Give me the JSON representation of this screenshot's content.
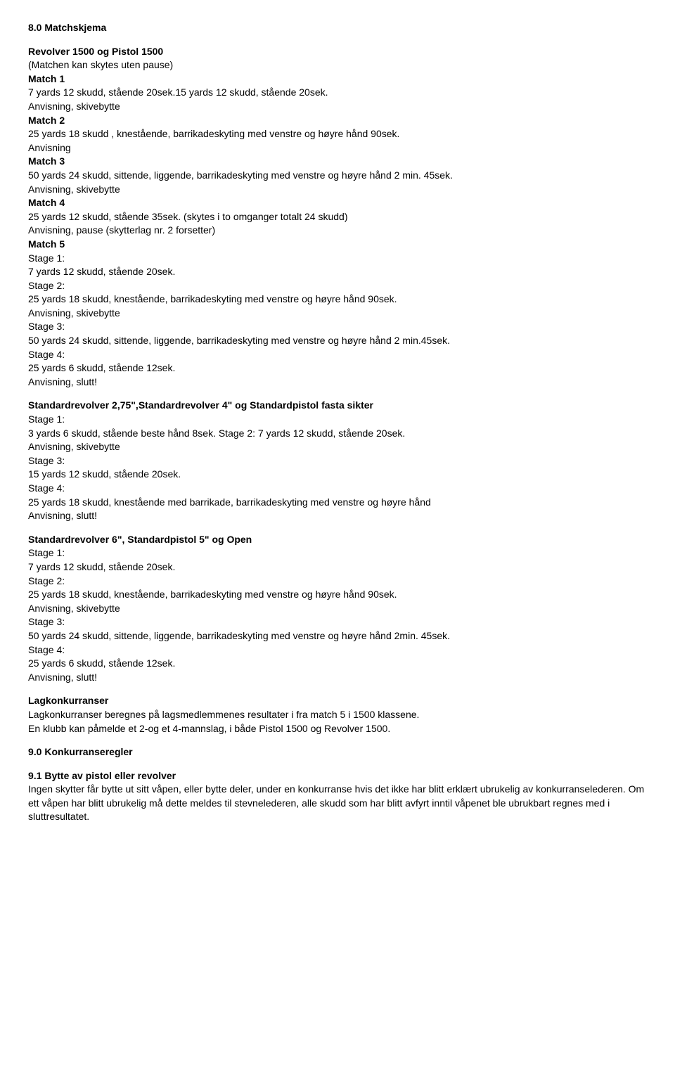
{
  "sec80": {
    "title": "8.0 Matchskjema",
    "revolver_pistol_title": "Revolver 1500 og Pistol 1500",
    "matchen_note": "(Matchen kan skytes uten pause)",
    "match1_label": "Match 1",
    "match1_line1": "7 yards 12 skudd, stående 20sek.15 yards 12 skudd, stående 20sek.",
    "match1_line2": "Anvisning, skivebytte",
    "match2_label": "Match 2",
    "match2_line1": "25 yards 18 skudd , knestående, barrikadeskyting med venstre og høyre hånd 90sek.",
    "match2_line2": "Anvisning",
    "match3_label": "Match 3",
    "match3_line1": "50 yards 24 skudd, sittende, liggende, barrikadeskyting med venstre og høyre hånd 2 min. 45sek.",
    "match3_line2": "Anvisning, skivebytte",
    "match4_label": "Match 4",
    "match4_line1": "25 yards 12 skudd, stående 35sek. (skytes i to omganger totalt 24 skudd)",
    "match4_line2": "Anvisning, pause (skytterlag nr. 2 forsetter)",
    "match5_label": "Match 5",
    "match5_stage1_label": "Stage 1:",
    "match5_stage1_text": "7 yards 12 skudd, stående 20sek.",
    "match5_stage2_label": "Stage 2:",
    "match5_stage2_text": "25 yards 18 skudd, knestående, barrikadeskyting med venstre og høyre hånd 90sek.",
    "match5_stage2_text2": "Anvisning, skivebytte",
    "match5_stage3_label": "Stage 3:",
    "match5_stage3_text": "50 yards 24 skudd, sittende, liggende, barrikadeskyting med venstre og høyre hånd 2 min.45sek.",
    "match5_stage4_label": "Stage 4:",
    "match5_stage4_text": "25 yards 6 skudd, stående 12sek.",
    "match5_stage4_text2": "Anvisning, slutt!",
    "std_275_title": "Standardrevolver 2,75\",Standardrevolver 4\" og Standardpistol fasta sikter",
    "std_275_stage1_label": "Stage 1:",
    "std_275_stage1_text": "3 yards 6 skudd, stående beste hånd 8sek. Stage 2: 7 yards 12 skudd, stående 20sek.",
    "std_275_stage1_text2": "Anvisning, skivebytte",
    "std_275_stage3_label": "Stage 3:",
    "std_275_stage3_text": "15 yards 12 skudd, stående 20sek.",
    "std_275_stage4_label": "Stage 4:",
    "std_275_stage4_text": "25 yards 18 skudd, knestående med barrikade, barrikadeskyting med venstre og høyre hånd",
    "std_275_stage4_text2": "Anvisning, slutt!",
    "std6_title": "Standardrevolver 6\", Standardpistol 5\" og Open",
    "std6_stage1_label": "Stage 1:",
    "std6_stage1_text": "7 yards 12 skudd, stående 20sek.",
    "std6_stage2_label": "Stage 2:",
    "std6_stage2_text": "25 yards 18 skudd, knestående, barrikadeskyting med venstre og høyre hånd 90sek.",
    "std6_stage2_text2": "Anvisning, skivebytte",
    "std6_stage3_label": "Stage 3:",
    "std6_stage3_text": "50 yards 24 skudd, sittende, liggende, barrikadeskyting med venstre og høyre hånd 2min. 45sek.",
    "std6_stage4_label": "Stage 4:",
    "std6_stage4_text": " 25 yards 6 skudd, stående 12sek.",
    "std6_stage4_text2": "Anvisning, slutt!",
    "lag_title": "Lagkonkurranser",
    "lag_text1": "Lagkonkurranser beregnes på lagsmedlemmenes resultater i fra match 5 i 1500 klassene.",
    "lag_text2": "En klubb kan påmelde et 2-og et 4-mannslag, i både Pistol 1500 og Revolver 1500."
  },
  "sec90": {
    "title": "9.0 Konkurranseregler"
  },
  "sec91": {
    "title": "9.1 Bytte av pistol eller revolver",
    "text": "Ingen skytter får bytte ut sitt våpen, eller bytte deler, under en konkurranse hvis det ikke har blitt erklært ubrukelig av konkurranselederen. Om ett våpen har blitt ubrukelig må dette meldes til stevnelederen, alle skudd som har blitt avfyrt inntil våpenet ble ubrukbart regnes med i sluttresultatet."
  }
}
